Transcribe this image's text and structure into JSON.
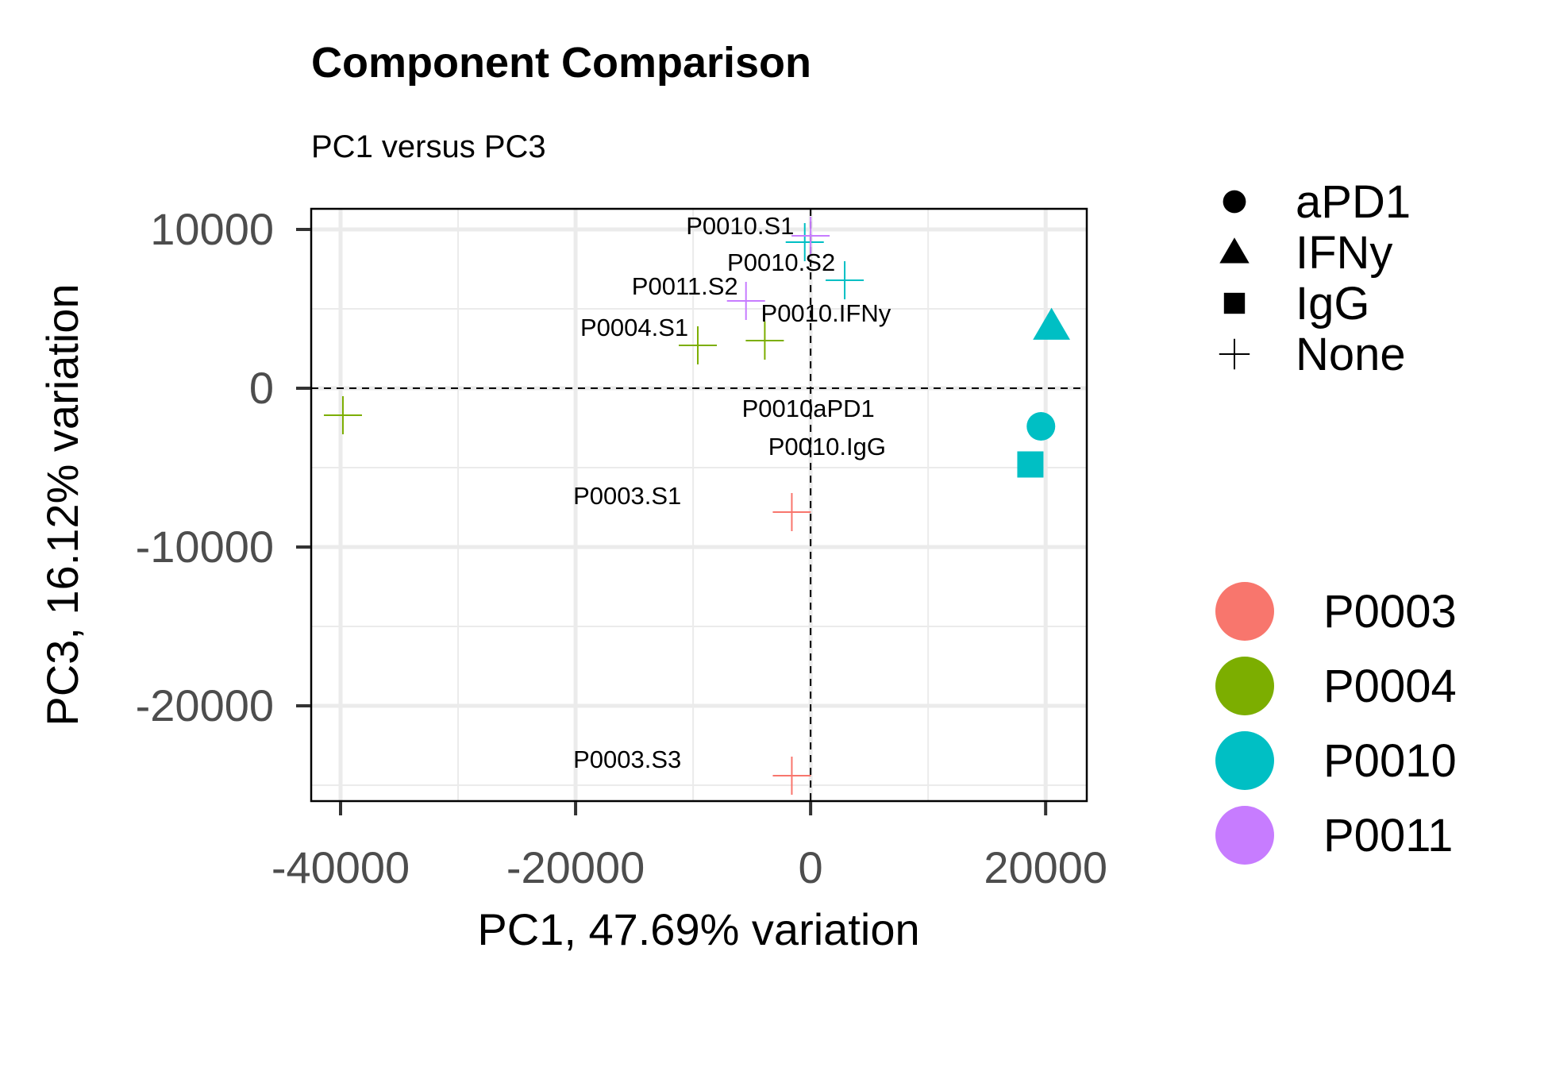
{
  "chart_data": {
    "type": "scatter",
    "title": "Component Comparison",
    "subtitle": "PC1 versus PC3",
    "xlabel": "PC1, 47.69% variation",
    "ylabel": "PC3, 16.12% variation",
    "xlim": [
      -42500,
      23500
    ],
    "ylim": [
      -26000,
      11300
    ],
    "x_ticks": [
      -40000,
      -20000,
      0,
      20000
    ],
    "x_tick_labels": [
      "-40000",
      "-20000",
      "0",
      "20000"
    ],
    "y_ticks": [
      10000,
      0,
      -10000,
      -20000
    ],
    "y_tick_labels": [
      "10000",
      "0",
      "-10000",
      "-20000"
    ],
    "grid": true,
    "reference_lines": {
      "x": 0,
      "y": 0
    },
    "shape_legend": {
      "placement": "right-top",
      "entries": [
        {
          "label": "aPD1",
          "shape": "circle"
        },
        {
          "label": "IFNy",
          "shape": "triangle"
        },
        {
          "label": "IgG",
          "shape": "square"
        },
        {
          "label": "None",
          "shape": "plus"
        }
      ]
    },
    "color_legend": {
      "placement": "right-bottom",
      "entries": [
        {
          "label": "P0003",
          "color": "#F8766D"
        },
        {
          "label": "P0004",
          "color": "#7CAE00"
        },
        {
          "label": "P0010",
          "color": "#00BFC4"
        },
        {
          "label": "P0011",
          "color": "#C77CFF"
        }
      ]
    },
    "points": [
      {
        "x": -500,
        "y": 9200,
        "group": "P0010",
        "shape": "plus"
      },
      {
        "x": 0,
        "y": 9600,
        "group": "P0011",
        "shape": "plus"
      },
      {
        "x": 2900,
        "y": 6800,
        "group": "P0010",
        "shape": "plus"
      },
      {
        "x": -5500,
        "y": 5500,
        "group": "P0011",
        "shape": "plus"
      },
      {
        "x": -9600,
        "y": 2700,
        "group": "P0004",
        "shape": "plus"
      },
      {
        "x": -3900,
        "y": 3000,
        "group": "P0004",
        "shape": "plus"
      },
      {
        "x": 20500,
        "y": 3900,
        "group": "P0010",
        "shape": "triangle"
      },
      {
        "x": -39800,
        "y": -1700,
        "group": "P0004",
        "shape": "plus"
      },
      {
        "x": 19600,
        "y": -2400,
        "group": "P0010",
        "shape": "circle"
      },
      {
        "x": 18700,
        "y": -4800,
        "group": "P0010",
        "shape": "square"
      },
      {
        "x": -1600,
        "y": -7800,
        "group": "P0003",
        "shape": "plus"
      },
      {
        "x": -1600,
        "y": -24400,
        "group": "P0003",
        "shape": "plus"
      }
    ],
    "point_labels": [
      {
        "text": "P0010.S1",
        "x": -6000,
        "y": 9700
      },
      {
        "text": "P0010.S2",
        "x": -2500,
        "y": 7400
      },
      {
        "text": "P0011.S2",
        "x": -10700,
        "y": 5900
      },
      {
        "text": "P0004.S1",
        "x": -15000,
        "y": 3300
      },
      {
        "text": "P0010.IFNy",
        "x": 1300,
        "y": 4200
      },
      {
        "text": "P0010aPD1",
        "x": -200,
        "y": -1800
      },
      {
        "text": "P0010.IgG",
        "x": 1400,
        "y": -4200
      },
      {
        "text": "P0003.S1",
        "x": -15600,
        "y": -7300
      },
      {
        "text": "P0003.S3",
        "x": -15600,
        "y": -23900
      }
    ]
  }
}
